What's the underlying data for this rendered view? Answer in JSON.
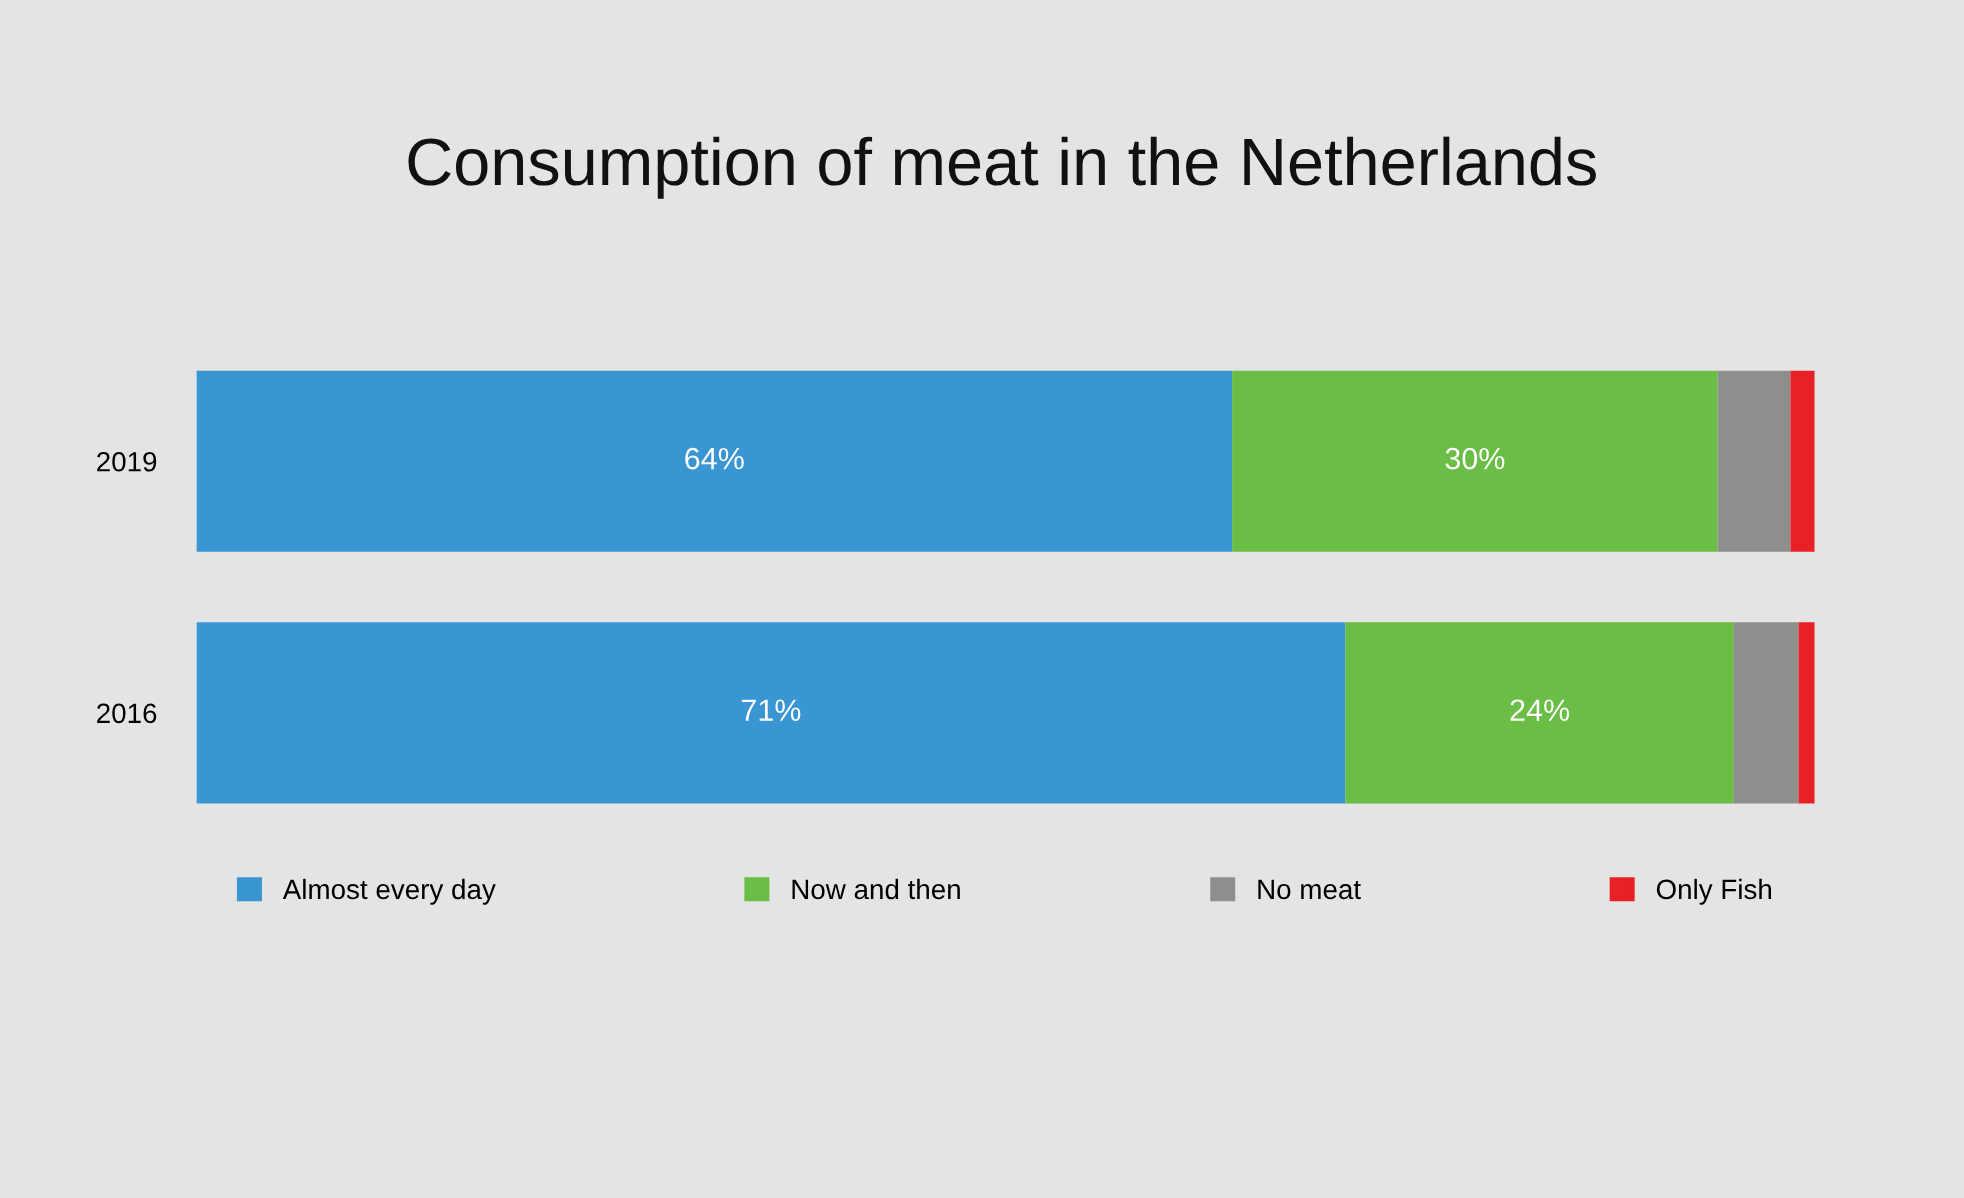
{
  "chart_data": {
    "type": "bar",
    "orientation": "horizontal",
    "stacked": true,
    "title": "Consumption of meat in the Netherlands",
    "categories": [
      "2019",
      "2016"
    ],
    "legend": "bottom",
    "grid": false,
    "series": [
      {
        "name": "Almost every day",
        "color": "#3a95d3",
        "values": [
          64,
          71
        ],
        "value_labels": [
          "64%",
          "71%"
        ]
      },
      {
        "name": "Now and then",
        "color": "#6abd45",
        "values": [
          30,
          24
        ],
        "value_labels": [
          "30%",
          "24%"
        ]
      },
      {
        "name": "No meat",
        "color": "#8e8e8e",
        "values": [
          4.5,
          4
        ],
        "value_labels": [
          null,
          null
        ]
      },
      {
        "name": "Only Fish",
        "color": "#e82127",
        "values": [
          1.5,
          1
        ],
        "value_labels": [
          null,
          null
        ]
      }
    ]
  }
}
